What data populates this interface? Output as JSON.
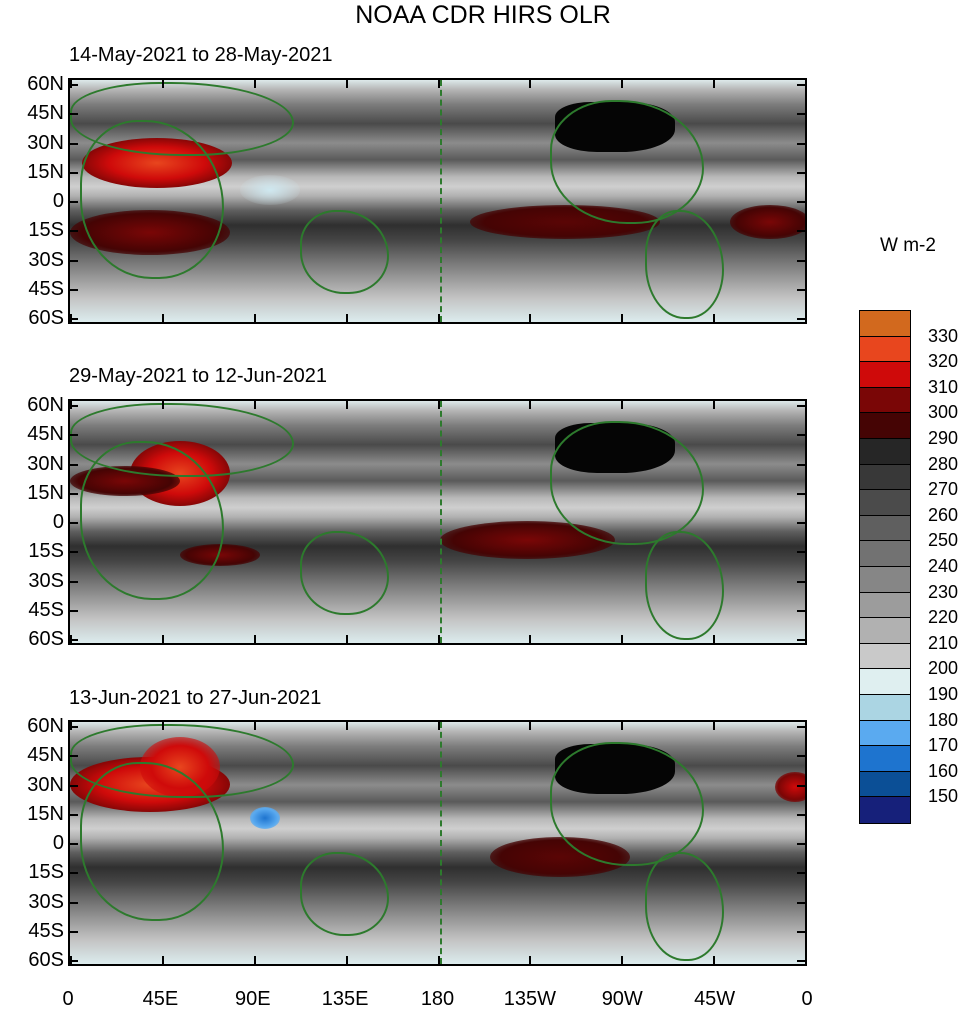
{
  "title": "NOAA CDR HIRS OLR",
  "panels": [
    {
      "label": "14-May-2021 to 28-May-2021"
    },
    {
      "label": "29-May-2021 to 12-Jun-2021"
    },
    {
      "label": "13-Jun-2021 to 27-Jun-2021"
    }
  ],
  "lat_labels": [
    "60N",
    "45N",
    "30N",
    "15N",
    "0",
    "15S",
    "30S",
    "45S",
    "60S"
  ],
  "lon_labels": [
    "0",
    "45E",
    "90E",
    "135E",
    "180",
    "135W",
    "90W",
    "45W",
    "0"
  ],
  "colorbar": {
    "units": "W m-2",
    "labels": [
      "330",
      "320",
      "310",
      "300",
      "290",
      "280",
      "270",
      "260",
      "250",
      "240",
      "230",
      "220",
      "210",
      "200",
      "190",
      "180",
      "170",
      "160",
      "150"
    ],
    "colors": [
      "#d2691e",
      "#e8461e",
      "#cf0a0a",
      "#7a0606",
      "#450404",
      "#262626",
      "#383838",
      "#4b4b4b",
      "#5f5f5f",
      "#727272",
      "#868686",
      "#9c9c9c",
      "#b1b1b1",
      "#c9c9c9",
      "#dfeff0",
      "#abd5e3",
      "#5aaaf0",
      "#1e74cf",
      "#0b4f96",
      "#16207a"
    ]
  },
  "colors": {
    "coastline": "#2d7a2d",
    "frame": "#000000"
  }
}
